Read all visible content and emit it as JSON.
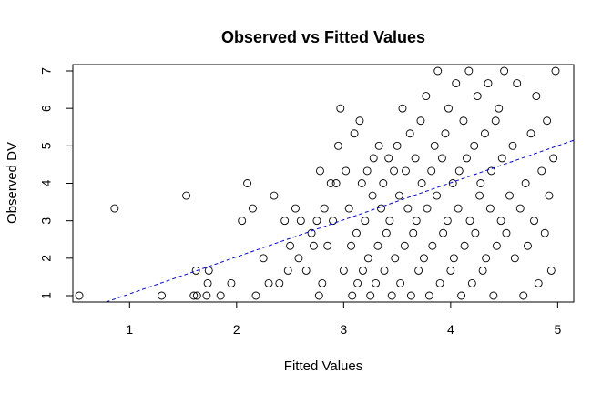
{
  "chart_data": {
    "type": "scatter",
    "title": "Observed vs Fitted Values",
    "xlabel": "Fitted Values",
    "ylabel": "Observed DV",
    "xlim": [
      0.47,
      5.15
    ],
    "ylim": [
      0.83,
      7.17
    ],
    "xticks": [
      1,
      2,
      3,
      4,
      5
    ],
    "yticks": [
      1,
      2,
      3,
      4,
      5,
      6,
      7
    ],
    "grid": false,
    "point_color": "#000000",
    "fit_line": {
      "style": "dashed",
      "color": "#0000ff",
      "points": [
        [
          0.78,
          0.83
        ],
        [
          5.15,
          5.15
        ]
      ]
    },
    "series": [
      {
        "values_note": "",
        "points": [
          [
            0.53,
            1.0
          ],
          [
            0.86,
            3.33
          ],
          [
            1.3,
            1.0
          ],
          [
            1.53,
            3.67
          ],
          [
            1.6,
            1.0
          ],
          [
            1.62,
            1.67
          ],
          [
            1.63,
            1.0
          ],
          [
            1.72,
            1.0
          ],
          [
            1.73,
            1.33
          ],
          [
            1.74,
            1.67
          ],
          [
            1.85,
            1.0
          ],
          [
            1.95,
            1.33
          ],
          [
            2.05,
            3.0
          ],
          [
            2.1,
            4.0
          ],
          [
            2.15,
            3.33
          ],
          [
            2.18,
            1.0
          ],
          [
            2.25,
            2.0
          ],
          [
            2.3,
            1.33
          ],
          [
            2.35,
            3.67
          ],
          [
            2.4,
            1.33
          ],
          [
            2.45,
            3.0
          ],
          [
            2.48,
            1.67
          ],
          [
            2.5,
            2.33
          ],
          [
            2.55,
            3.33
          ],
          [
            2.58,
            2.0
          ],
          [
            2.6,
            3.0
          ],
          [
            2.65,
            1.67
          ],
          [
            2.7,
            2.67
          ],
          [
            2.72,
            2.33
          ],
          [
            2.75,
            3.0
          ],
          [
            2.77,
            1.0
          ],
          [
            2.78,
            4.33
          ],
          [
            2.8,
            1.33
          ],
          [
            2.82,
            3.33
          ],
          [
            2.85,
            2.33
          ],
          [
            2.88,
            4.0
          ],
          [
            2.9,
            3.0
          ],
          [
            2.93,
            4.0
          ],
          [
            2.95,
            5.0
          ],
          [
            2.97,
            6.0
          ],
          [
            3.0,
            1.67
          ],
          [
            3.02,
            4.33
          ],
          [
            3.05,
            3.33
          ],
          [
            3.07,
            2.33
          ],
          [
            3.08,
            1.0
          ],
          [
            3.1,
            5.33
          ],
          [
            3.12,
            2.67
          ],
          [
            3.13,
            1.33
          ],
          [
            3.15,
            5.67
          ],
          [
            3.17,
            4.0
          ],
          [
            3.18,
            1.67
          ],
          [
            3.2,
            3.0
          ],
          [
            3.22,
            4.33
          ],
          [
            3.23,
            2.0
          ],
          [
            3.25,
            1.0
          ],
          [
            3.27,
            3.67
          ],
          [
            3.28,
            4.67
          ],
          [
            3.3,
            1.33
          ],
          [
            3.32,
            2.33
          ],
          [
            3.33,
            5.0
          ],
          [
            3.35,
            3.33
          ],
          [
            3.37,
            4.0
          ],
          [
            3.38,
            1.67
          ],
          [
            3.4,
            2.67
          ],
          [
            3.42,
            4.67
          ],
          [
            3.43,
            3.0
          ],
          [
            3.45,
            1.0
          ],
          [
            3.47,
            4.33
          ],
          [
            3.48,
            2.0
          ],
          [
            3.5,
            5.0
          ],
          [
            3.52,
            3.67
          ],
          [
            3.53,
            1.33
          ],
          [
            3.55,
            6.0
          ],
          [
            3.57,
            2.33
          ],
          [
            3.58,
            4.33
          ],
          [
            3.6,
            3.33
          ],
          [
            3.62,
            5.33
          ],
          [
            3.63,
            1.0
          ],
          [
            3.65,
            2.67
          ],
          [
            3.67,
            4.67
          ],
          [
            3.68,
            3.0
          ],
          [
            3.7,
            1.67
          ],
          [
            3.72,
            5.67
          ],
          [
            3.73,
            4.0
          ],
          [
            3.75,
            2.0
          ],
          [
            3.77,
            6.33
          ],
          [
            3.78,
            3.33
          ],
          [
            3.8,
            1.0
          ],
          [
            3.82,
            4.33
          ],
          [
            3.83,
            2.33
          ],
          [
            3.85,
            5.0
          ],
          [
            3.87,
            3.67
          ],
          [
            3.88,
            7.0
          ],
          [
            3.9,
            1.33
          ],
          [
            3.92,
            4.67
          ],
          [
            3.93,
            2.67
          ],
          [
            3.95,
            5.33
          ],
          [
            3.97,
            3.0
          ],
          [
            3.98,
            6.0
          ],
          [
            4.0,
            1.67
          ],
          [
            4.02,
            4.0
          ],
          [
            4.03,
            2.0
          ],
          [
            4.05,
            6.67
          ],
          [
            4.07,
            3.33
          ],
          [
            4.08,
            4.33
          ],
          [
            4.1,
            1.0
          ],
          [
            4.12,
            5.67
          ],
          [
            4.13,
            2.33
          ],
          [
            4.15,
            4.67
          ],
          [
            4.17,
            7.0
          ],
          [
            4.18,
            3.0
          ],
          [
            4.2,
            1.33
          ],
          [
            4.22,
            5.0
          ],
          [
            4.23,
            2.67
          ],
          [
            4.25,
            6.33
          ],
          [
            4.27,
            3.67
          ],
          [
            4.28,
            4.0
          ],
          [
            4.3,
            1.67
          ],
          [
            4.32,
            5.33
          ],
          [
            4.33,
            2.0
          ],
          [
            4.35,
            6.67
          ],
          [
            4.37,
            3.33
          ],
          [
            4.38,
            4.33
          ],
          [
            4.4,
            1.0
          ],
          [
            4.42,
            5.67
          ],
          [
            4.43,
            2.33
          ],
          [
            4.45,
            6.0
          ],
          [
            4.47,
            3.0
          ],
          [
            4.48,
            4.67
          ],
          [
            4.5,
            7.0
          ],
          [
            4.52,
            2.67
          ],
          [
            4.55,
            3.67
          ],
          [
            4.58,
            5.0
          ],
          [
            4.6,
            2.0
          ],
          [
            4.62,
            6.67
          ],
          [
            4.65,
            3.33
          ],
          [
            4.68,
            1.0
          ],
          [
            4.7,
            4.0
          ],
          [
            4.72,
            2.33
          ],
          [
            4.75,
            5.33
          ],
          [
            4.78,
            3.0
          ],
          [
            4.8,
            6.33
          ],
          [
            4.82,
            1.33
          ],
          [
            4.85,
            4.33
          ],
          [
            4.88,
            2.67
          ],
          [
            4.9,
            5.67
          ],
          [
            4.92,
            3.67
          ],
          [
            4.94,
            1.67
          ],
          [
            4.96,
            4.67
          ],
          [
            4.98,
            7.0
          ]
        ]
      }
    ]
  }
}
